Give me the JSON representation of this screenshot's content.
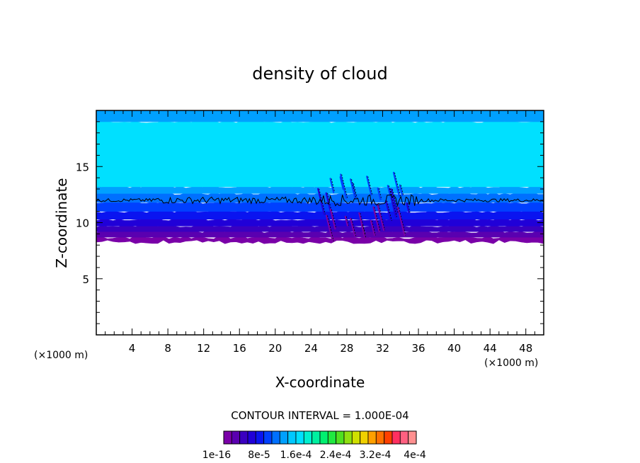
{
  "chart_data": {
    "type": "contour",
    "title": "density of cloud",
    "xlabel": "X-coordinate",
    "ylabel": "Z-coordinate",
    "x_unit": "(×1000 m)",
    "z_unit": "(×1000 m)",
    "xlim": [
      0,
      50
    ],
    "ylim": [
      0,
      20
    ],
    "x_ticks": [
      4,
      8,
      12,
      16,
      20,
      24,
      28,
      32,
      36,
      40,
      44,
      48
    ],
    "y_ticks": [
      5,
      10,
      15
    ],
    "contour_interval_text": "CONTOUR INTERVAL = 1.000E-04",
    "colorbar_labels": [
      "1e-16",
      "8e-5",
      "1.6e-4",
      "2.4e-4",
      "3.2e-4",
      "4e-4"
    ],
    "colorbar_colors": [
      "#7a00a8",
      "#5a00b0",
      "#3a00c0",
      "#2000d8",
      "#0a14f0",
      "#0040ff",
      "#0070ff",
      "#00a0ff",
      "#00c8ff",
      "#00e0ff",
      "#00f0d0",
      "#00f0a0",
      "#00f070",
      "#20e840",
      "#50e020",
      "#90e010",
      "#d0e000",
      "#f0d000",
      "#ffa000",
      "#ff7000",
      "#ff4000",
      "#ff3060",
      "#ff6080",
      "#ff9090"
    ],
    "layers": [
      {
        "z_bottom": 8.3,
        "z_top": 8.7,
        "color": "#7a00a8"
      },
      {
        "z_bottom": 8.7,
        "z_top": 9.2,
        "color": "#5a00b0"
      },
      {
        "z_bottom": 9.2,
        "z_top": 9.7,
        "color": "#3a00c0"
      },
      {
        "z_bottom": 9.7,
        "z_top": 10.3,
        "color": "#2000d8"
      },
      {
        "z_bottom": 10.3,
        "z_top": 11.0,
        "color": "#0a14f0"
      },
      {
        "z_bottom": 11.0,
        "z_top": 11.8,
        "color": "#0040ff"
      },
      {
        "z_bottom": 11.8,
        "z_top": 12.6,
        "color": "#0070ff"
      },
      {
        "z_bottom": 12.6,
        "z_top": 13.2,
        "color": "#00a0ff"
      },
      {
        "z_bottom": 13.2,
        "z_top": 19.0,
        "color": "#00e0ff"
      },
      {
        "z_bottom": 19.0,
        "z_top": 20.0,
        "color": "#00a0ff"
      }
    ],
    "contour_line_z": 12.0,
    "disturbance_x_range": [
      24,
      36
    ]
  }
}
